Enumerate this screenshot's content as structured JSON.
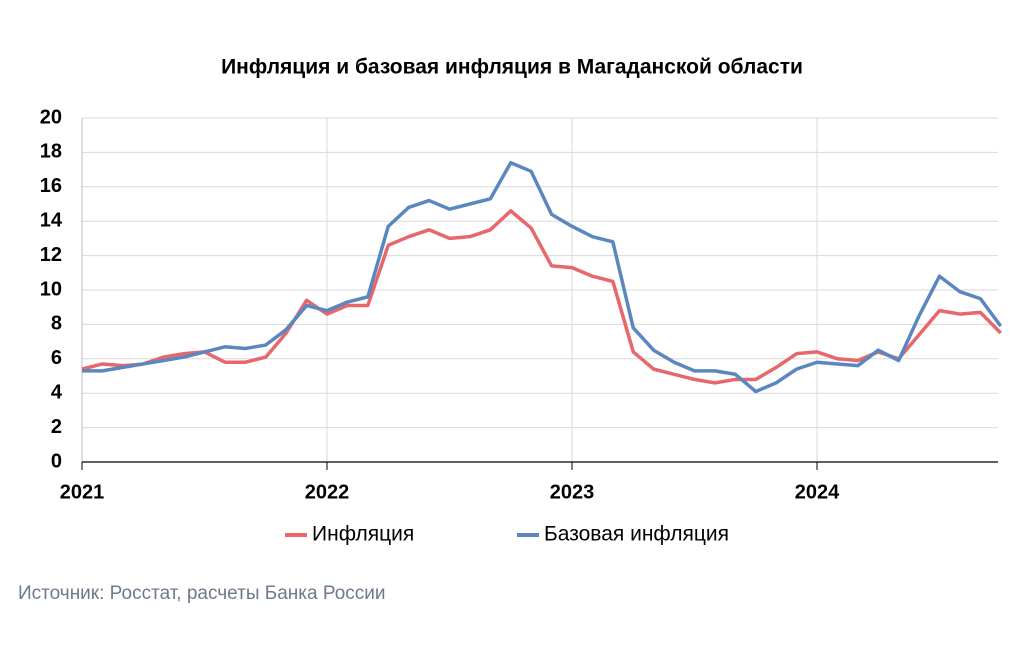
{
  "chart_data": {
    "type": "line",
    "title": "Инфляция и базовая инфляция в Магаданской области",
    "source": "Источник: Росстат, расчеты Банка России",
    "categories": [
      "2021",
      null,
      null,
      null,
      null,
      null,
      null,
      null,
      null,
      null,
      null,
      null,
      "2022",
      null,
      null,
      null,
      null,
      null,
      null,
      null,
      null,
      null,
      null,
      null,
      "2023",
      null,
      null,
      null,
      null,
      null,
      null,
      null,
      null,
      null,
      null,
      null,
      "2024",
      null,
      null,
      null,
      null,
      null,
      null,
      null,
      null,
      null
    ],
    "series": [
      {
        "name": "Инфляция",
        "color": "#e8676b",
        "values": [
          5.4,
          5.7,
          5.6,
          5.7,
          6.1,
          6.3,
          6.4,
          5.8,
          5.8,
          6.1,
          7.5,
          9.4,
          8.6,
          9.1,
          9.1,
          12.6,
          13.1,
          13.5,
          13.0,
          13.1,
          13.5,
          14.6,
          13.6,
          11.4,
          11.3,
          10.8,
          10.5,
          6.4,
          5.4,
          5.1,
          4.8,
          4.6,
          4.8,
          4.8,
          5.5,
          6.3,
          6.4,
          6.0,
          5.9,
          6.4,
          6.0,
          7.4,
          8.8,
          8.6,
          8.7,
          7.5
        ]
      },
      {
        "name": "Базовая инфляция",
        "color": "#5b87c0",
        "values": [
          5.3,
          5.3,
          5.5,
          5.7,
          5.9,
          6.1,
          6.4,
          6.7,
          6.6,
          6.8,
          7.7,
          9.1,
          8.8,
          9.3,
          9.6,
          13.7,
          14.8,
          15.2,
          14.7,
          15.0,
          15.3,
          17.4,
          16.9,
          14.4,
          13.7,
          13.1,
          12.8,
          7.8,
          6.5,
          5.8,
          5.3,
          5.3,
          5.1,
          4.1,
          4.6,
          5.4,
          5.8,
          5.7,
          5.6,
          6.5,
          5.9,
          8.5,
          10.8,
          9.9,
          9.5,
          7.9
        ]
      }
    ],
    "ylim": [
      0,
      20
    ],
    "yticks": [
      0,
      2,
      4,
      6,
      8,
      10,
      12,
      14,
      16,
      18,
      20
    ],
    "grid": true,
    "legend": "bottom"
  }
}
